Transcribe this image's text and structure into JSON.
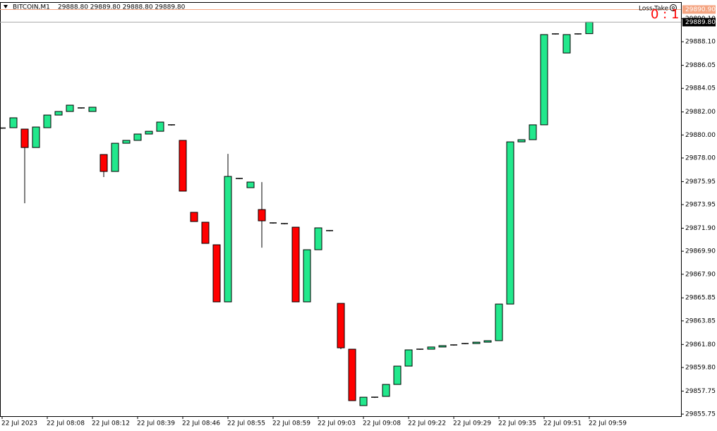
{
  "chart_data": {
    "type": "candlestick",
    "symbol": "BITCOIN,M1",
    "ohlc_text": "29888.80 29889.80 29888.80 29889.80",
    "indicator_label": "Loss-Take",
    "indicator_value": "0 : 1",
    "up_color": "#22e88c",
    "down_color": "#ff0000",
    "categories": [
      "22 Jul 2023",
      null,
      null,
      null,
      "22 Jul 08:08",
      null,
      null,
      null,
      "22 Jul 08:12",
      null,
      null,
      null,
      "22 Jul 08:39",
      null,
      null,
      null,
      "22 Jul 08:46",
      null,
      null,
      null,
      "22 Jul 08:55",
      null,
      null,
      null,
      "22 Jul 08:59",
      null,
      null,
      null,
      "22 Jul 09:03",
      null,
      null,
      null,
      "22 Jul 09:08",
      null,
      null,
      null,
      "22 Jul 09:22",
      null,
      null,
      null,
      "22 Jul 09:29",
      null,
      null,
      null,
      "22 Jul 09:35",
      null,
      null,
      null,
      "22 Jul 09:51",
      null,
      null,
      null,
      "22 Jul 09:59"
    ],
    "open": [
      29880.6,
      29880.63,
      29880.51,
      29878.91,
      29880.63,
      29881.73,
      29882.04,
      29882.35,
      29882.04,
      29878.3,
      29876.83,
      29879.28,
      29879.53,
      29880.08,
      29880.32,
      29880.88,
      29879.53,
      29873.28,
      29872.42,
      29870.46,
      29865.5,
      29876.22,
      29875.42,
      29873.52,
      29872.36,
      29872.3,
      29871.99,
      29865.5,
      29870.03,
      29871.69,
      29865.37,
      29861.39,
      29856.49,
      29857.22,
      29857.29,
      29858.33,
      29859.92,
      29861.39,
      29861.39,
      29861.58,
      29861.76,
      29861.88,
      29861.88,
      29862.0,
      29862.13,
      29865.31,
      29879.4,
      29879.59,
      29880.88,
      29888.78,
      29887.12,
      29888.78,
      29888.8
    ],
    "high": [
      29880.6,
      29881.49,
      29880.51,
      29880.69,
      29881.73,
      29882.04,
      29882.59,
      29882.35,
      29882.41,
      29878.3,
      29879.28,
      29879.53,
      29880.08,
      29880.32,
      29881.12,
      29880.88,
      29879.53,
      29873.28,
      29872.42,
      29870.46,
      29878.36,
      29876.22,
      29875.91,
      29875.91,
      29872.36,
      29872.3,
      29871.99,
      29870.03,
      29871.93,
      29871.69,
      29865.37,
      29861.39,
      29857.22,
      29857.22,
      29858.33,
      29859.92,
      29861.33,
      29861.39,
      29861.58,
      29861.7,
      29861.76,
      29861.88,
      29862.0,
      29862.13,
      29865.31,
      29879.4,
      29879.59,
      29880.88,
      29888.72,
      29888.78,
      29888.72,
      29888.78,
      29889.8
    ],
    "low": [
      29880.6,
      29880.63,
      29874.07,
      29878.91,
      29880.63,
      29881.73,
      29882.04,
      29882.35,
      29882.04,
      29876.34,
      29876.83,
      29879.28,
      29879.53,
      29880.08,
      29880.32,
      29880.88,
      29875.12,
      29872.48,
      29870.58,
      29865.5,
      29865.5,
      29876.22,
      29875.42,
      29870.21,
      29872.36,
      29872.3,
      29865.5,
      29865.5,
      29870.03,
      29871.69,
      29861.39,
      29856.92,
      29856.49,
      29857.22,
      29857.29,
      29858.33,
      29859.92,
      29861.39,
      29861.39,
      29861.58,
      29861.76,
      29861.88,
      29861.88,
      29862.0,
      29862.13,
      29865.31,
      29879.4,
      29879.59,
      29880.88,
      29888.78,
      29887.12,
      29888.78,
      29888.8
    ],
    "close": [
      29880.6,
      29881.49,
      29878.91,
      29880.69,
      29881.73,
      29882.04,
      29882.59,
      29882.35,
      29882.41,
      29876.83,
      29879.28,
      29879.53,
      29880.08,
      29880.32,
      29881.12,
      29880.88,
      29875.12,
      29872.48,
      29870.58,
      29865.5,
      29876.4,
      29876.22,
      29875.91,
      29872.54,
      29872.36,
      29872.3,
      29865.5,
      29870.03,
      29871.93,
      29871.69,
      29861.51,
      29856.92,
      29857.22,
      29857.22,
      29858.33,
      29859.92,
      29861.33,
      29861.39,
      29861.58,
      29861.7,
      29861.76,
      29861.88,
      29862.0,
      29862.13,
      29865.31,
      29879.4,
      29879.59,
      29880.88,
      29888.72,
      29888.78,
      29888.72,
      29888.78,
      29889.8
    ],
    "ylim": [
      29855.57,
      29891.54
    ],
    "yticks": [
      {
        "value": 29890.1,
        "label": "29890.10"
      },
      {
        "value": 29888.1,
        "label": "29888.10"
      },
      {
        "value": 29886.05,
        "label": "29886.05"
      },
      {
        "value": 29884.05,
        "label": "29884.05"
      },
      {
        "value": 29882.0,
        "label": "29882.00"
      },
      {
        "value": 29880.0,
        "label": "29880.00"
      },
      {
        "value": 29878.0,
        "label": "29878.00"
      },
      {
        "value": 29875.95,
        "label": "29875.95"
      },
      {
        "value": 29873.95,
        "label": "29873.95"
      },
      {
        "value": 29871.9,
        "label": "29871.90"
      },
      {
        "value": 29869.9,
        "label": "29869.90"
      },
      {
        "value": 29867.9,
        "label": "29867.90"
      },
      {
        "value": 29865.85,
        "label": "29865.85"
      },
      {
        "value": 29863.85,
        "label": "29863.85"
      },
      {
        "value": 29861.8,
        "label": "29861.80"
      },
      {
        "value": 29859.8,
        "label": "29859.80"
      },
      {
        "value": 29857.75,
        "label": "29857.75"
      },
      {
        "value": 29855.75,
        "label": "29855.75"
      }
    ],
    "levels": [
      {
        "value": 29890.9,
        "label": "29890.90",
        "color": "#f4a582"
      },
      {
        "value": 29889.8,
        "label": "29889.80",
        "color": "#a9a9a9"
      }
    ]
  }
}
